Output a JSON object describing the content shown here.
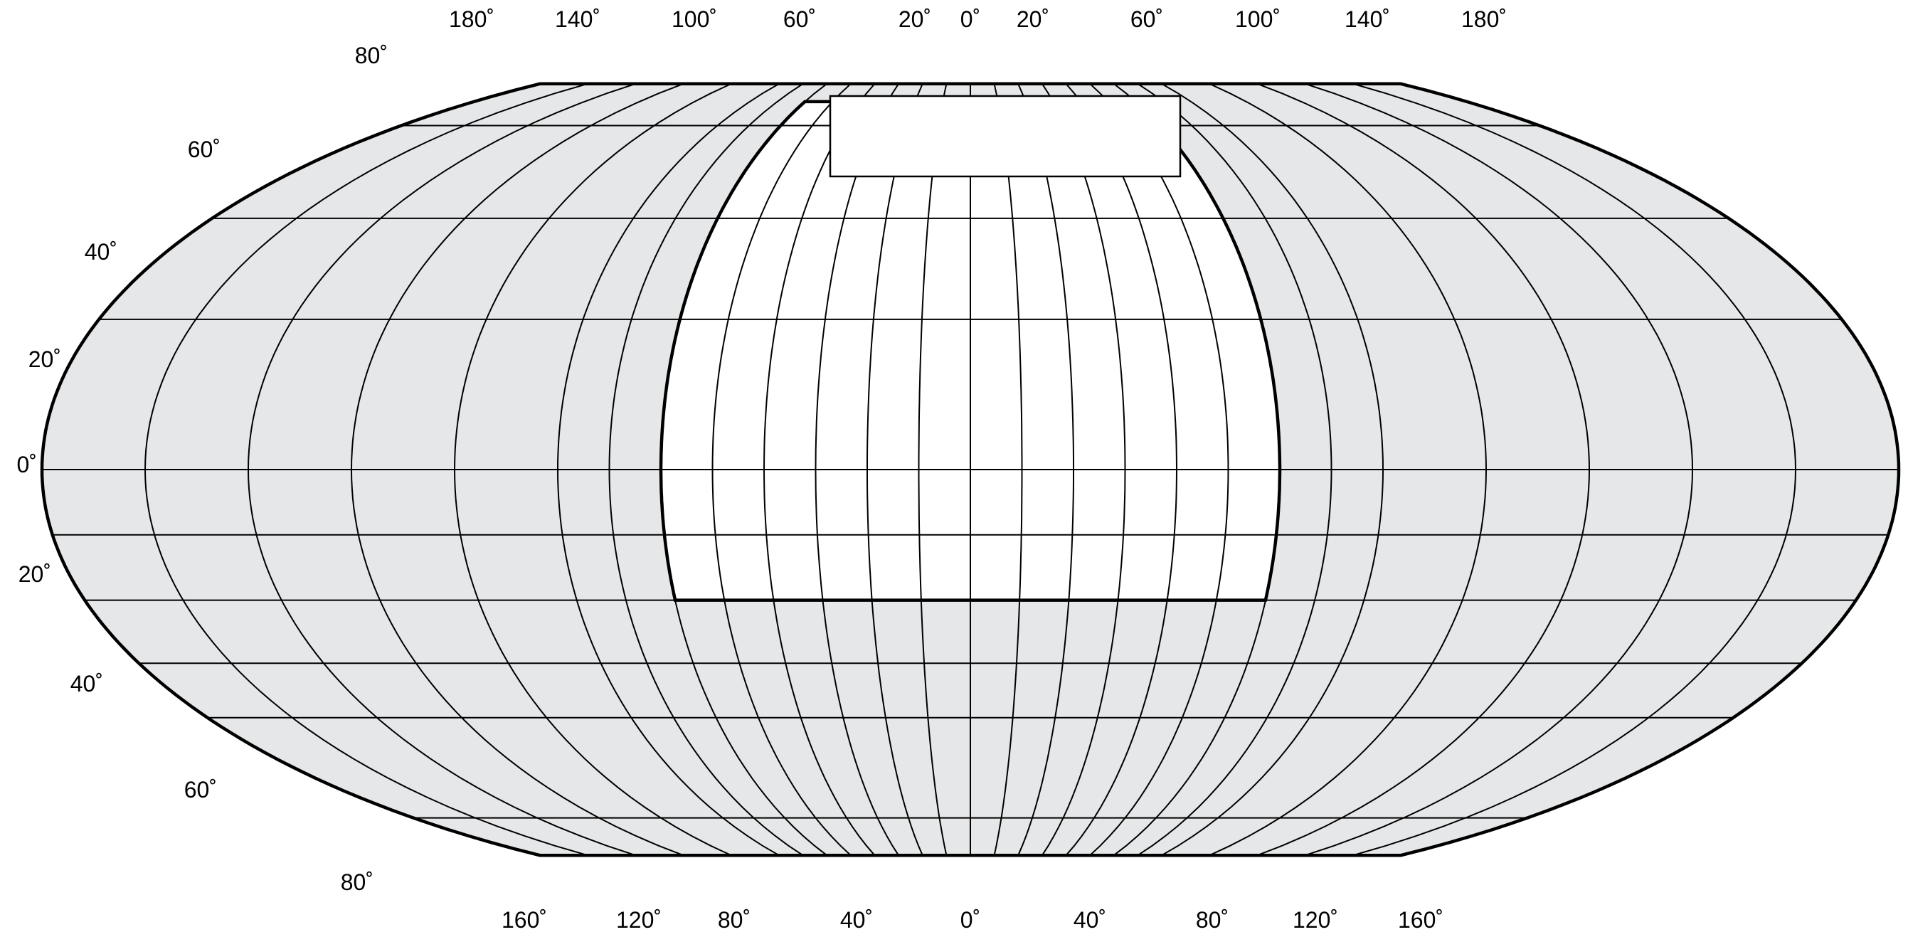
{
  "map": {
    "colors": {
      "ocean_fill": "#e6e7e8",
      "region_fill": "#ffffff",
      "line": "#000000",
      "background": "#ffffff"
    },
    "top_longitude_labels": [
      "180˚",
      "140˚",
      "100˚",
      "60˚",
      "20˚",
      "0˚",
      "20˚",
      "60˚",
      "100˚",
      "140˚",
      "180˚"
    ],
    "bottom_longitude_labels": [
      "160˚",
      "120˚",
      "80˚",
      "40˚",
      "0˚",
      "40˚",
      "80˚",
      "120˚",
      "160˚"
    ],
    "left_latitude_labels": [
      "80˚",
      "60˚",
      "40˚",
      "20˚",
      "0˚",
      "20˚",
      "40˚",
      "60˚",
      "80˚"
    ],
    "title_box_text": ""
  }
}
